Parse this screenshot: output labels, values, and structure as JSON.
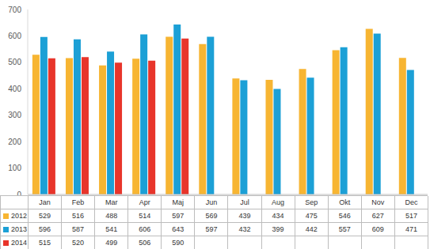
{
  "chart_data": {
    "type": "bar",
    "categories": [
      "Jan",
      "Feb",
      "Mar",
      "Apr",
      "Maj",
      "Jun",
      "Jul",
      "Aug",
      "Sep",
      "Okt",
      "Nov",
      "Dec"
    ],
    "series": [
      {
        "name": "2012",
        "color": "#f7b532",
        "values": [
          529,
          516,
          488,
          514,
          597,
          569,
          439,
          434,
          475,
          546,
          627,
          517
        ]
      },
      {
        "name": "2013",
        "color": "#1ca0d6",
        "values": [
          596,
          587,
          541,
          606,
          643,
          597,
          432,
          399,
          442,
          557,
          609,
          471
        ]
      },
      {
        "name": "2014",
        "color": "#e8352b",
        "values": [
          515,
          520,
          499,
          506,
          590,
          null,
          null,
          null,
          null,
          null,
          null,
          null
        ]
      }
    ],
    "ylim": [
      0,
      700
    ],
    "yticks": [
      0,
      100,
      200,
      300,
      400,
      500,
      600,
      700
    ],
    "grid": false
  }
}
